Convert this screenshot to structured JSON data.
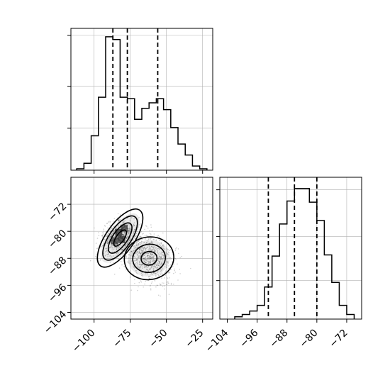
{
  "figure": {
    "background": "#ffffff",
    "grid": true,
    "line_color": "#000000",
    "grid_color": "#b0b0b0"
  },
  "chart_data": [
    {
      "panel": "top-left",
      "type": "histogram",
      "parameter": "x",
      "xlim": [
        -116,
        -18
      ],
      "bin_edges": [
        -112,
        -107,
        -102,
        -97,
        -92,
        -87,
        -82,
        -77,
        -72,
        -67,
        -62,
        -57,
        -52,
        -47,
        -42,
        -37,
        -32,
        -27,
        -22
      ],
      "counts": [
        1,
        5,
        25,
        53,
        97,
        95,
        53,
        52,
        37,
        45,
        49,
        52,
        44,
        31,
        19,
        11,
        3,
        1
      ],
      "count_max": 100,
      "quantile_lines": [
        -87,
        -77,
        -56
      ],
      "yticks_shown": 3,
      "tick_labels_shown": false
    },
    {
      "panel": "bottom-left",
      "type": "scatter-density",
      "xlim": [
        -116,
        -18
      ],
      "ylim": [
        -106,
        -64
      ],
      "xticks": [
        -100,
        -75,
        -50,
        -25
      ],
      "xtick_labels": [
        "−100",
        "−75",
        "−50",
        "−25"
      ],
      "yticks": [
        -72,
        -80,
        -88,
        -96,
        -104
      ],
      "ytick_labels": [
        "−72",
        "−80",
        "−88",
        "−96",
        "−104"
      ],
      "clusters": [
        {
          "center": [
            -82,
            -82
          ],
          "spread_along": 10,
          "spread_across": 3.5,
          "orientation": "rising",
          "contour_levels": 4
        },
        {
          "center": [
            -62,
            -88
          ],
          "spread_along": 11,
          "spread_across": 7,
          "orientation": "round",
          "contour_levels": 3
        }
      ]
    },
    {
      "panel": "bottom-right",
      "type": "histogram",
      "parameter": "y",
      "xlim": [
        -106,
        -68
      ],
      "xticks": [
        -104,
        -96,
        -88,
        -80,
        -72
      ],
      "xtick_labels": [
        "−104",
        "−96",
        "−88",
        "−80",
        "−72"
      ],
      "bin_edges": [
        -102,
        -100,
        -98,
        -96,
        -94,
        -92,
        -90,
        -88,
        -86,
        -84,
        -82,
        -80,
        -78,
        -76,
        -74,
        -72,
        -70
      ],
      "counts": [
        2,
        4,
        7,
        12,
        28,
        55,
        83,
        103,
        114,
        114,
        102,
        86,
        56,
        32,
        12,
        4
      ],
      "count_max": 120,
      "quantile_lines": [
        -93,
        -86,
        -80
      ],
      "yticks_shown": 3
    }
  ]
}
